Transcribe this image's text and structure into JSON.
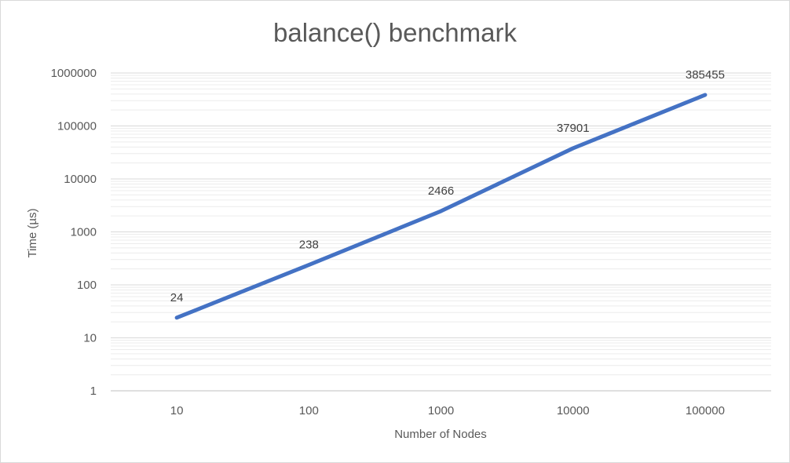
{
  "chart_data": {
    "type": "line",
    "title": "balance() benchmark",
    "xlabel": "Number of Nodes",
    "ylabel": "Time (µs)",
    "categories": [
      "10",
      "100",
      "1000",
      "10000",
      "100000"
    ],
    "series": [
      {
        "values": [
          24,
          238,
          2466,
          37901,
          385455
        ],
        "data_labels": [
          "24",
          "238",
          "2466",
          "37901",
          "385455"
        ]
      }
    ],
    "y_scale": "log",
    "ylim": [
      1,
      1000000
    ],
    "y_ticks": [
      "1",
      "10",
      "100",
      "1000",
      "10000",
      "100000",
      "1000000"
    ],
    "grid": "major and minor horizontal",
    "legend": "none",
    "colors": {
      "series": "#4472c4",
      "major_grid": "#d9d9d9",
      "minor_grid": "#ececec",
      "text": "#595959"
    }
  }
}
